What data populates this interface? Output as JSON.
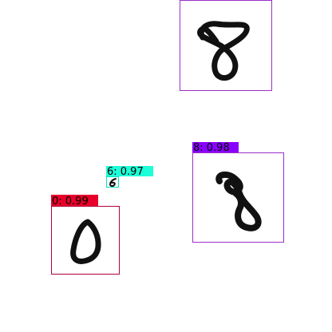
{
  "image": {
    "background_color": "#ffffff"
  },
  "detections": [
    {
      "id": "det-8-unlabeled",
      "digit": "8",
      "label_text": "",
      "box_color": "#9b30c8",
      "label_bg": "",
      "has_label": false
    },
    {
      "id": "det-8",
      "digit": "8",
      "label_text": "8: 0.98",
      "box_color": "#9b30c8",
      "label_bg": "#8a00ff",
      "has_label": true
    },
    {
      "id": "det-6",
      "digit": "6",
      "label_text": "6: 0.97",
      "box_color": "#00e5c0",
      "label_bg": "#1dffd8",
      "has_label": true
    },
    {
      "id": "det-0",
      "digit": "0",
      "label_text": "0: 0.99",
      "box_color": "#b0003a",
      "label_bg": "#e8002a",
      "has_label": true
    }
  ]
}
